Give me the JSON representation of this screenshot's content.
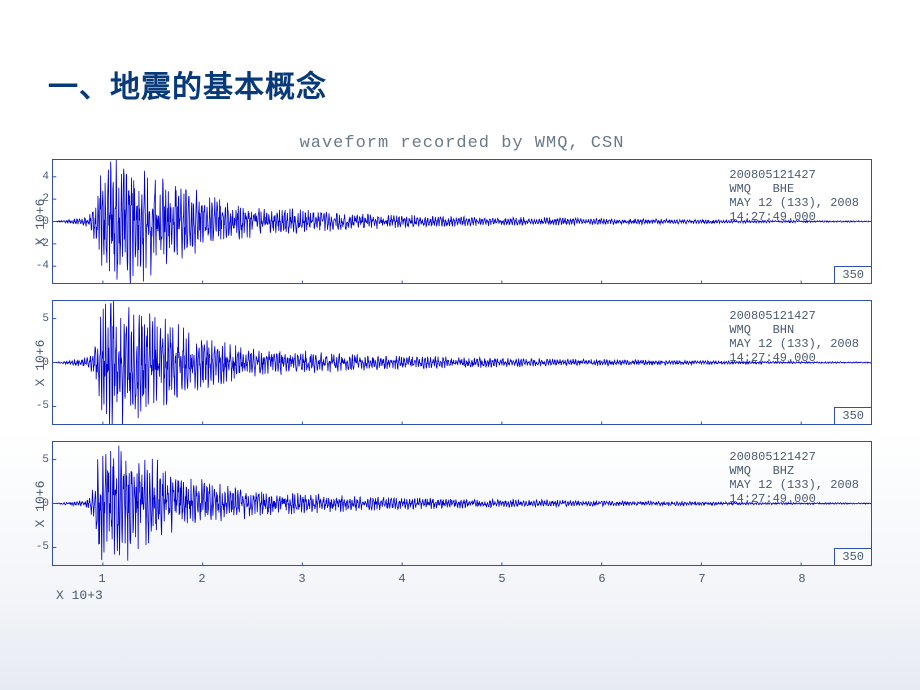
{
  "slide": {
    "title": "一、地震的基本概念",
    "title_color": "#083a7a",
    "title_fontsize": 30
  },
  "chart": {
    "title": "waveform recorded by WMQ, CSN",
    "title_color": "#6a7a8a",
    "title_font": "Courier New",
    "title_fontsize": 17,
    "panel_border_color": "#3050b0",
    "line_color": "#0000d0",
    "line_width": 0.8,
    "background_color": "#ffffff",
    "xaxis": {
      "label": "X 10+3",
      "ticks": [
        1,
        2,
        3,
        4,
        5,
        6,
        7,
        8
      ],
      "min": 0.5,
      "max": 8.7
    },
    "panels": [
      {
        "ylabel": "X 10+6",
        "yticks": [
          -4,
          -2,
          0,
          2,
          4
        ],
        "ymin": -5.5,
        "ymax": 5.5,
        "corner": "350",
        "info": [
          "200805121427",
          "WMQ   BHE",
          "MAY 12 (133), 2008",
          "14:27:49.000"
        ],
        "envelope": [
          [
            0.5,
            0.0
          ],
          [
            0.8,
            0.3
          ],
          [
            0.85,
            0.4
          ],
          [
            0.9,
            1.0
          ],
          [
            0.95,
            2.0
          ],
          [
            1.0,
            4.8
          ],
          [
            1.05,
            5.2
          ],
          [
            1.1,
            5.0
          ],
          [
            1.15,
            4.6
          ],
          [
            1.2,
            5.0
          ],
          [
            1.25,
            4.4
          ],
          [
            1.3,
            4.8
          ],
          [
            1.35,
            4.2
          ],
          [
            1.4,
            4.5
          ],
          [
            1.45,
            3.8
          ],
          [
            1.5,
            4.0
          ],
          [
            1.55,
            3.4
          ],
          [
            1.6,
            3.6
          ],
          [
            1.7,
            3.0
          ],
          [
            1.8,
            2.6
          ],
          [
            1.9,
            2.4
          ],
          [
            2.0,
            2.0
          ],
          [
            2.1,
            1.8
          ],
          [
            2.2,
            1.6
          ],
          [
            2.3,
            1.4
          ],
          [
            2.4,
            1.3
          ],
          [
            2.5,
            1.2
          ],
          [
            2.7,
            1.0
          ],
          [
            2.9,
            0.9
          ],
          [
            3.1,
            0.8
          ],
          [
            3.3,
            0.7
          ],
          [
            3.5,
            0.6
          ],
          [
            3.8,
            0.5
          ],
          [
            4.1,
            0.45
          ],
          [
            4.4,
            0.4
          ],
          [
            4.7,
            0.35
          ],
          [
            5.0,
            0.32
          ],
          [
            5.3,
            0.3
          ],
          [
            5.6,
            0.28
          ],
          [
            5.9,
            0.25
          ],
          [
            6.2,
            0.22
          ],
          [
            6.5,
            0.2
          ],
          [
            6.8,
            0.18
          ],
          [
            7.1,
            0.15
          ],
          [
            7.4,
            0.12
          ],
          [
            7.7,
            0.1
          ],
          [
            8.0,
            0.08
          ],
          [
            8.3,
            0.06
          ],
          [
            8.7,
            0.05
          ]
        ]
      },
      {
        "ylabel": "X 10+6",
        "yticks": [
          -5,
          0,
          5
        ],
        "ymin": -7,
        "ymax": 7,
        "corner": "350",
        "info": [
          "200805121427",
          "WMQ   BHN",
          "MAY 12 (133), 2008",
          "14:27:49.000"
        ],
        "envelope": [
          [
            0.5,
            0.0
          ],
          [
            0.8,
            0.4
          ],
          [
            0.85,
            0.6
          ],
          [
            0.9,
            1.2
          ],
          [
            0.95,
            2.5
          ],
          [
            1.0,
            5.8
          ],
          [
            1.05,
            6.5
          ],
          [
            1.1,
            6.2
          ],
          [
            1.15,
            5.8
          ],
          [
            1.2,
            6.0
          ],
          [
            1.25,
            5.2
          ],
          [
            1.3,
            5.6
          ],
          [
            1.35,
            5.0
          ],
          [
            1.4,
            5.4
          ],
          [
            1.45,
            4.6
          ],
          [
            1.5,
            4.8
          ],
          [
            1.55,
            4.0
          ],
          [
            1.6,
            4.2
          ],
          [
            1.7,
            3.6
          ],
          [
            1.8,
            3.2
          ],
          [
            1.9,
            2.8
          ],
          [
            2.0,
            2.4
          ],
          [
            2.1,
            2.2
          ],
          [
            2.2,
            2.0
          ],
          [
            2.3,
            1.7
          ],
          [
            2.4,
            1.5
          ],
          [
            2.5,
            1.4
          ],
          [
            2.7,
            1.2
          ],
          [
            2.9,
            1.1
          ],
          [
            3.1,
            1.0
          ],
          [
            3.3,
            0.9
          ],
          [
            3.5,
            0.8
          ],
          [
            3.8,
            0.7
          ],
          [
            4.1,
            0.6
          ],
          [
            4.4,
            0.55
          ],
          [
            4.7,
            0.5
          ],
          [
            5.0,
            0.45
          ],
          [
            5.3,
            0.4
          ],
          [
            5.6,
            0.35
          ],
          [
            5.9,
            0.32
          ],
          [
            6.2,
            0.28
          ],
          [
            6.5,
            0.25
          ],
          [
            6.8,
            0.22
          ],
          [
            7.1,
            0.18
          ],
          [
            7.4,
            0.15
          ],
          [
            7.7,
            0.12
          ],
          [
            8.0,
            0.1
          ],
          [
            8.3,
            0.08
          ],
          [
            8.7,
            0.06
          ]
        ]
      },
      {
        "ylabel": "X 10+6",
        "yticks": [
          -5,
          0,
          5
        ],
        "ymin": -7,
        "ymax": 7,
        "corner": "350",
        "info": [
          "200805121427",
          "WMQ   BHZ",
          "MAY 12 (133), 2008",
          "14:27:49.000"
        ],
        "envelope": [
          [
            0.5,
            0.0
          ],
          [
            0.8,
            0.3
          ],
          [
            0.85,
            0.5
          ],
          [
            0.88,
            1.0
          ],
          [
            0.92,
            2.0
          ],
          [
            0.96,
            5.0
          ],
          [
            1.0,
            5.5
          ],
          [
            1.05,
            6.0
          ],
          [
            1.1,
            5.6
          ],
          [
            1.15,
            5.8
          ],
          [
            1.2,
            5.0
          ],
          [
            1.25,
            5.4
          ],
          [
            1.3,
            4.8
          ],
          [
            1.35,
            5.0
          ],
          [
            1.4,
            4.4
          ],
          [
            1.45,
            4.6
          ],
          [
            1.5,
            4.0
          ],
          [
            1.55,
            4.2
          ],
          [
            1.6,
            3.6
          ],
          [
            1.7,
            3.2
          ],
          [
            1.8,
            2.8
          ],
          [
            1.9,
            2.4
          ],
          [
            2.0,
            2.2
          ],
          [
            2.1,
            2.0
          ],
          [
            2.2,
            1.8
          ],
          [
            2.3,
            1.6
          ],
          [
            2.4,
            1.4
          ],
          [
            2.5,
            1.3
          ],
          [
            2.7,
            1.1
          ],
          [
            2.9,
            1.0
          ],
          [
            3.1,
            0.9
          ],
          [
            3.3,
            0.8
          ],
          [
            3.5,
            0.7
          ],
          [
            3.8,
            0.6
          ],
          [
            4.1,
            0.55
          ],
          [
            4.4,
            0.5
          ],
          [
            4.7,
            0.45
          ],
          [
            5.0,
            0.4
          ],
          [
            5.3,
            0.35
          ],
          [
            5.6,
            0.32
          ],
          [
            5.9,
            0.28
          ],
          [
            6.2,
            0.25
          ],
          [
            6.5,
            0.22
          ],
          [
            6.8,
            0.2
          ],
          [
            7.1,
            0.17
          ],
          [
            7.4,
            0.14
          ],
          [
            7.7,
            0.12
          ],
          [
            8.0,
            0.1
          ],
          [
            8.3,
            0.08
          ],
          [
            8.7,
            0.06
          ]
        ]
      }
    ]
  }
}
